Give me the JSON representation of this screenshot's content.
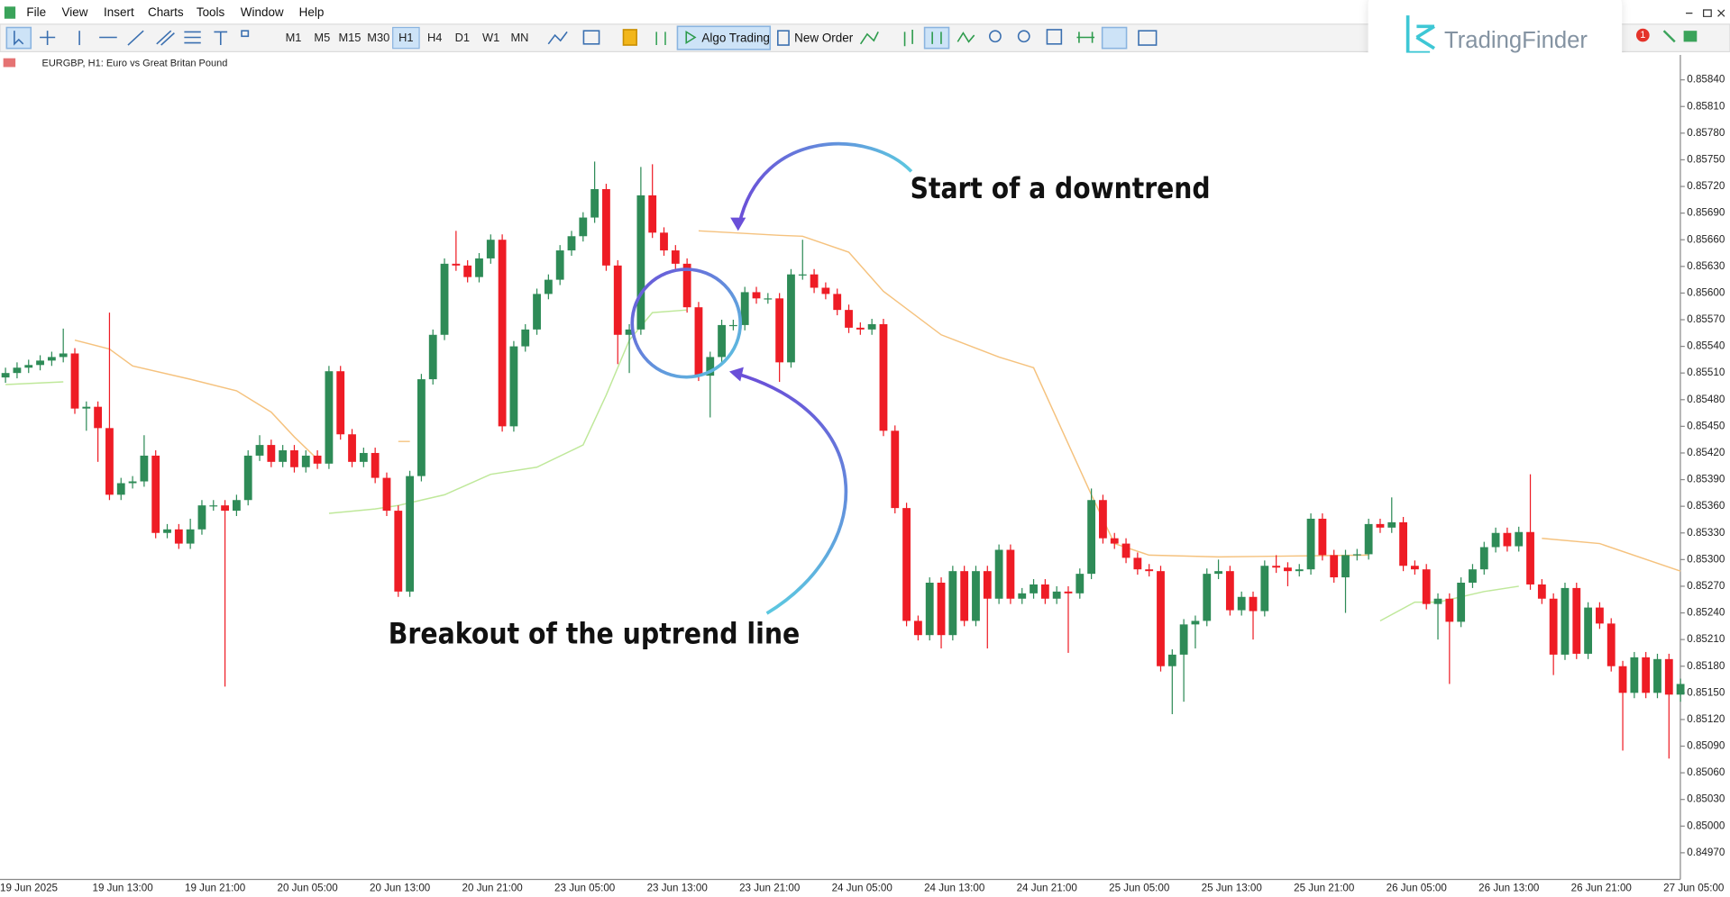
{
  "ui": {
    "menu": [
      "File",
      "View",
      "Insert",
      "Charts",
      "Tools",
      "Window",
      "Help"
    ],
    "timeframes": [
      "M1",
      "M5",
      "M15",
      "M30",
      "H1",
      "H4",
      "D1",
      "W1",
      "MN"
    ],
    "algo_trading": "Algo Trading",
    "new_order": "New Order",
    "brand": "TradingFinder",
    "badge": "1",
    "chart_header": "EURGBP, H1:  Euro vs Great Britan Pound"
  },
  "chart_data": {
    "type": "candlestick",
    "annotations": [
      "Start of a downtrend",
      "Breakout of the uptrend line"
    ],
    "categories": [
      "19 Jun 2025",
      null,
      null,
      null,
      null,
      null,
      null,
      null,
      "19 Jun 13:00",
      null,
      null,
      null,
      null,
      null,
      null,
      null,
      "19 Jun 21:00",
      null,
      null,
      null,
      null,
      null,
      null,
      null,
      "20 Jun 05:00",
      null,
      null,
      null,
      null,
      null,
      null,
      null,
      "20 Jun 13:00",
      null,
      null,
      null,
      null,
      null,
      null,
      null,
      "20 Jun 21:00",
      null,
      null,
      null,
      null,
      null,
      null,
      null,
      "23 Jun 05:00",
      null,
      null,
      null,
      null,
      null,
      null,
      null,
      "23 Jun 13:00",
      null,
      null,
      null,
      null,
      null,
      null,
      null,
      "23 Jun 21:00",
      null,
      null,
      null,
      null,
      null,
      null,
      null,
      "24 Jun 05:00",
      null,
      null,
      null,
      null,
      null,
      null,
      null,
      "24 Jun 13:00",
      null,
      null,
      null,
      null,
      null,
      null,
      null,
      "24 Jun 21:00",
      null,
      null,
      null,
      null,
      null,
      null,
      null,
      "25 Jun 05:00",
      null,
      null,
      null,
      null,
      null,
      null,
      null,
      "25 Jun 13:00",
      null,
      null,
      null,
      null,
      null,
      null,
      null,
      "25 Jun 21:00",
      null,
      null,
      null,
      null,
      null,
      null,
      null,
      "26 Jun 05:00",
      null,
      null,
      null,
      null,
      null,
      null,
      null,
      "26 Jun 13:00",
      null,
      null,
      null,
      null,
      null,
      null,
      null,
      "26 Jun 21:00",
      null,
      null,
      null,
      null,
      null,
      null,
      null,
      "27 Jun 05:00",
      null
    ],
    "open": [
      0.85505,
      0.8551,
      0.85516,
      0.85519,
      0.85524,
      0.85528,
      0.85532,
      0.8547,
      0.85472,
      0.85448,
      0.85373,
      0.85386,
      0.85388,
      0.85417,
      0.8533,
      0.85334,
      0.85318,
      0.85334,
      0.85361,
      0.85361,
      0.85355,
      0.85367,
      0.85417,
      0.85429,
      0.8541,
      0.85423,
      0.85404,
      0.85417,
      0.85408,
      0.85512,
      0.85441,
      0.8541,
      0.8542,
      0.85392,
      0.85355,
      0.85264,
      0.85394,
      0.85503,
      0.85553,
      0.85633,
      0.85631,
      0.85618,
      0.85639,
      0.8566,
      0.8545,
      0.8554,
      0.85559,
      0.85599,
      0.85615,
      0.85648,
      0.85664,
      0.85685,
      0.85717,
      0.85631,
      0.85553,
      0.85559,
      0.8571,
      0.85668,
      0.85648,
      0.85633,
      0.85584,
      0.85507,
      0.85528,
      0.85564,
      0.85564,
      0.85601,
      0.85594,
      0.85594,
      0.85522,
      0.85621,
      0.85621,
      0.85606,
      0.85599,
      0.85581,
      0.85561,
      0.85559,
      0.85565,
      0.85445,
      0.85358,
      0.85231,
      0.85215,
      0.85274,
      0.85215,
      0.85287,
      0.85231,
      0.85287,
      0.85256,
      0.85311,
      0.85256,
      0.85262,
      0.85272,
      0.85256,
      0.85264,
      0.85262,
      0.85284,
      0.85367,
      0.85324,
      0.85318,
      0.85302,
      0.85289,
      0.85287,
      0.8518,
      0.85193,
      0.85227,
      0.85231,
      0.85284,
      0.85287,
      0.85243,
      0.85258,
      0.85242,
      0.85293,
      0.85291,
      0.85287,
      0.85289,
      0.85346,
      0.85305,
      0.8528,
      0.85305,
      0.85306,
      0.8534,
      0.85336,
      0.85342,
      0.85293,
      0.85289,
      0.8525,
      0.85256,
      0.8523,
      0.85274,
      0.85289,
      0.85314,
      0.8533,
      0.85315,
      0.85331,
      0.85272,
      0.85256,
      0.85193,
      0.85268,
      0.85194,
      0.85246,
      0.85228,
      0.8518,
      0.8515,
      0.8519,
      0.8515,
      0.85188,
      0.85148
    ],
    "high": [
      0.85516,
      0.85522,
      0.85525,
      0.8553,
      0.85534,
      0.8556,
      0.85538,
      0.85478,
      0.85478,
      0.85578,
      0.85392,
      0.85394,
      0.8544,
      0.85423,
      0.8534,
      0.8534,
      0.85346,
      0.85367,
      0.85367,
      0.85367,
      0.85373,
      0.85423,
      0.8544,
      0.85435,
      0.85429,
      0.85429,
      0.85423,
      0.85423,
      0.85518,
      0.85518,
      0.85447,
      0.85426,
      0.85426,
      0.85398,
      0.85361,
      0.854,
      0.85509,
      0.85559,
      0.85639,
      0.8567,
      0.85637,
      0.85645,
      0.85666,
      0.85666,
      0.85546,
      0.85565,
      0.85605,
      0.85621,
      0.85654,
      0.8567,
      0.85691,
      0.85748,
      0.85723,
      0.85637,
      0.85565,
      0.85742,
      0.85745,
      0.85674,
      0.85654,
      0.85639,
      0.8559,
      0.85534,
      0.8557,
      0.8557,
      0.85607,
      0.85607,
      0.856,
      0.856,
      0.85627,
      0.8566,
      0.85627,
      0.85612,
      0.85605,
      0.85587,
      0.85567,
      0.85571,
      0.85571,
      0.85451,
      0.85364,
      0.85237,
      0.8528,
      0.8528,
      0.85293,
      0.85293,
      0.85293,
      0.85293,
      0.85317,
      0.85317,
      0.85268,
      0.85278,
      0.85278,
      0.8527,
      0.8527,
      0.8529,
      0.8538,
      0.85373,
      0.8533,
      0.85324,
      0.85308,
      0.85295,
      0.85293,
      0.85199,
      0.85233,
      0.85237,
      0.8529,
      0.853,
      0.85293,
      0.85264,
      0.85264,
      0.85299,
      0.85305,
      0.85297,
      0.85295,
      0.85352,
      0.85352,
      0.85311,
      0.85311,
      0.85312,
      0.85346,
      0.85346,
      0.8537,
      0.85348,
      0.85299,
      0.85295,
      0.85262,
      0.85262,
      0.8528,
      0.85295,
      0.8532,
      0.85336,
      0.85336,
      0.85337,
      0.85396,
      0.85278,
      0.85262,
      0.85274,
      0.85274,
      0.85252,
      0.85252,
      0.85234,
      0.85186,
      0.85196,
      0.85196,
      0.85194,
      0.85194,
      0.85166
    ],
    "low": [
      0.85499,
      0.85504,
      0.8551,
      0.85513,
      0.85518,
      0.85522,
      0.85464,
      0.85445,
      0.8541,
      0.85367,
      0.85367,
      0.8538,
      0.85382,
      0.85324,
      0.85324,
      0.85312,
      0.85312,
      0.85328,
      0.85355,
      0.85157,
      0.85349,
      0.85361,
      0.85411,
      0.85404,
      0.85404,
      0.85398,
      0.85398,
      0.85402,
      0.85402,
      0.85435,
      0.85404,
      0.85404,
      0.85386,
      0.85349,
      0.85258,
      0.85258,
      0.85388,
      0.85497,
      0.85547,
      0.85625,
      0.85612,
      0.85612,
      0.85633,
      0.85444,
      0.85444,
      0.85534,
      0.85553,
      0.85593,
      0.85609,
      0.85642,
      0.85658,
      0.85679,
      0.85625,
      0.8552,
      0.8551,
      0.85553,
      0.85662,
      0.85642,
      0.85627,
      0.85578,
      0.85501,
      0.8546,
      0.85522,
      0.85558,
      0.85558,
      0.85588,
      0.85588,
      0.855,
      0.85516,
      0.85615,
      0.856,
      0.85593,
      0.85575,
      0.85555,
      0.85553,
      0.85553,
      0.85439,
      0.85352,
      0.85225,
      0.85209,
      0.85209,
      0.852,
      0.85209,
      0.85225,
      0.85225,
      0.852,
      0.8525,
      0.8525,
      0.8525,
      0.85256,
      0.8525,
      0.8525,
      0.85195,
      0.85256,
      0.85278,
      0.85318,
      0.85312,
      0.85296,
      0.85283,
      0.85281,
      0.85174,
      0.85126,
      0.8514,
      0.852,
      0.85225,
      0.85278,
      0.85237,
      0.85237,
      0.8521,
      0.85236,
      0.85285,
      0.8527,
      0.85281,
      0.85283,
      0.85299,
      0.85274,
      0.8524,
      0.85299,
      0.853,
      0.8533,
      0.8533,
      0.85287,
      0.85283,
      0.85244,
      0.8521,
      0.8516,
      0.85224,
      0.85268,
      0.85283,
      0.85308,
      0.85309,
      0.85309,
      0.85266,
      0.8525,
      0.8517,
      0.85187,
      0.85188,
      0.85188,
      0.85222,
      0.85174,
      0.85085,
      0.85144,
      0.85144,
      0.85144,
      0.85076,
      0.8514
    ],
    "close": [
      0.8551,
      0.85516,
      0.85519,
      0.85524,
      0.85528,
      0.85532,
      0.8547,
      0.85472,
      0.85448,
      0.85373,
      0.85386,
      0.85388,
      0.85417,
      0.8533,
      0.85334,
      0.85318,
      0.85334,
      0.85361,
      0.85361,
      0.85355,
      0.85367,
      0.85417,
      0.85429,
      0.8541,
      0.85423,
      0.85404,
      0.85417,
      0.85408,
      0.85512,
      0.85441,
      0.8541,
      0.8542,
      0.85392,
      0.85355,
      0.85264,
      0.85394,
      0.85503,
      0.85553,
      0.85633,
      0.85631,
      0.85618,
      0.85639,
      0.8566,
      0.8545,
      0.8554,
      0.85559,
      0.85599,
      0.85615,
      0.85648,
      0.85664,
      0.85685,
      0.85717,
      0.85631,
      0.85553,
      0.85559,
      0.8571,
      0.85668,
      0.85648,
      0.85633,
      0.85584,
      0.85507,
      0.85528,
      0.85564,
      0.85564,
      0.85601,
      0.85594,
      0.85594,
      0.85522,
      0.85621,
      0.85621,
      0.85606,
      0.85599,
      0.85581,
      0.85561,
      0.85559,
      0.85565,
      0.85445,
      0.85358,
      0.85231,
      0.85215,
      0.85274,
      0.85215,
      0.85287,
      0.85231,
      0.85287,
      0.85256,
      0.85311,
      0.85256,
      0.85262,
      0.85272,
      0.85256,
      0.85264,
      0.85262,
      0.85284,
      0.85367,
      0.85324,
      0.85318,
      0.85302,
      0.85289,
      0.85287,
      0.8518,
      0.85193,
      0.85227,
      0.85231,
      0.85284,
      0.85287,
      0.85243,
      0.85258,
      0.85242,
      0.85293,
      0.85291,
      0.85287,
      0.85289,
      0.85346,
      0.85305,
      0.8528,
      0.85305,
      0.85306,
      0.8534,
      0.85336,
      0.85342,
      0.85293,
      0.85289,
      0.8525,
      0.85256,
      0.8523,
      0.85274,
      0.85289,
      0.85314,
      0.8533,
      0.85315,
      0.85331,
      0.85272,
      0.85256,
      0.85193,
      0.85268,
      0.85194,
      0.85246,
      0.85228,
      0.8518,
      0.8515,
      0.8519,
      0.8515,
      0.85188,
      0.85148,
      0.8516
    ],
    "up_color": "#2e8b57",
    "down_color": "#ee1c25",
    "series": [
      {
        "color": "#f5c27e",
        "x": [
          6,
          9,
          11,
          16,
          20,
          23,
          25,
          27,
          28,
          34,
          35,
          40,
          60,
          67,
          69,
          73,
          76,
          81,
          86,
          89,
          94,
          96,
          99,
          105,
          118,
          125,
          133,
          138,
          145
        ],
        "values": [
          0.85547,
          0.85537,
          0.85518,
          0.85503,
          0.8549,
          0.85466,
          0.85438,
          0.85413,
          null,
          0.85433,
          0.85433,
          null,
          0.8567,
          0.85665,
          0.85664,
          0.85646,
          0.85602,
          0.85553,
          0.85528,
          0.85516,
          0.85373,
          0.85318,
          0.85305,
          0.85303,
          0.85305,
          null,
          0.85324,
          0.85318,
          0.85287
        ]
      },
      {
        "color": "#bfe89a",
        "x": [
          0,
          5,
          10,
          28,
          32,
          34,
          38,
          42,
          46,
          50,
          52,
          54,
          56,
          59,
          90,
          119,
          122,
          124,
          128,
          131
        ],
        "values": [
          0.85497,
          0.855,
          null,
          0.85352,
          0.85357,
          0.85361,
          0.85373,
          0.85396,
          0.85404,
          0.85429,
          0.85485,
          0.85547,
          0.85578,
          0.85581,
          null,
          0.85231,
          0.85252,
          0.85252,
          0.85264,
          0.8527
        ]
      }
    ],
    "ylim": [
      0.8494,
      0.85868
    ],
    "yticks": [
      {
        "value": 0.8497,
        "label": "0.84970"
      },
      {
        "value": 0.85,
        "label": "0.85000"
      },
      {
        "value": 0.8503,
        "label": "0.85030"
      },
      {
        "value": 0.8506,
        "label": "0.85060"
      },
      {
        "value": 0.8509,
        "label": "0.85090"
      },
      {
        "value": 0.8512,
        "label": "0.85120"
      },
      {
        "value": 0.8515,
        "label": "0.85150"
      },
      {
        "value": 0.8518,
        "label": "0.85180"
      },
      {
        "value": 0.8521,
        "label": "0.85210"
      },
      {
        "value": 0.8524,
        "label": "0.85240"
      },
      {
        "value": 0.8527,
        "label": "0.85270"
      },
      {
        "value": 0.853,
        "label": "0.85300"
      },
      {
        "value": 0.8533,
        "label": "0.85330"
      },
      {
        "value": 0.8536,
        "label": "0.85360"
      },
      {
        "value": 0.8539,
        "label": "0.85390"
      },
      {
        "value": 0.8542,
        "label": "0.85420"
      },
      {
        "value": 0.8545,
        "label": "0.85450"
      },
      {
        "value": 0.8548,
        "label": "0.85480"
      },
      {
        "value": 0.8551,
        "label": "0.85510"
      },
      {
        "value": 0.8554,
        "label": "0.85540"
      },
      {
        "value": 0.8557,
        "label": "0.85570"
      },
      {
        "value": 0.856,
        "label": "0.85600"
      },
      {
        "value": 0.8563,
        "label": "0.85630"
      },
      {
        "value": 0.8566,
        "label": "0.85660"
      },
      {
        "value": 0.8569,
        "label": "0.85690"
      },
      {
        "value": 0.8572,
        "label": "0.85720"
      },
      {
        "value": 0.8575,
        "label": "0.85750"
      },
      {
        "value": 0.8578,
        "label": "0.85780"
      },
      {
        "value": 0.8581,
        "label": "0.85810"
      },
      {
        "value": 0.8584,
        "label": "0.85840"
      }
    ],
    "grid": false
  }
}
